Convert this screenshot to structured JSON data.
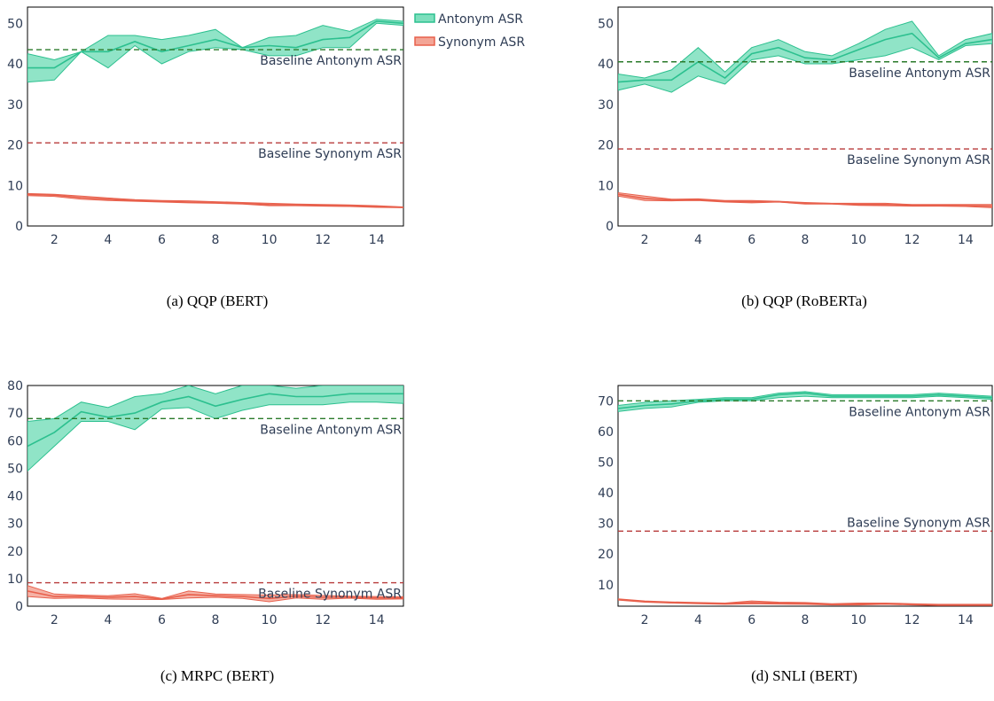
{
  "legend": {
    "antonym_label": "Antonym ASR",
    "synonym_label": "Synonym ASR"
  },
  "colors": {
    "antonym": "#2cc08f",
    "antonym_fill": "#7ddfbd",
    "synonym": "#e8604c",
    "synonym_fill": "#f3a596",
    "baseline_antonym": "#2a7a2a",
    "baseline_synonym": "#b83b3b",
    "axis_text": "#2f3d55"
  },
  "chart_data": [
    {
      "type": "line",
      "caption": "(a) QQP (BERT)",
      "x": [
        1,
        2,
        3,
        4,
        5,
        6,
        7,
        8,
        9,
        10,
        11,
        12,
        13,
        14,
        15
      ],
      "xlim": [
        1,
        15
      ],
      "ylim": [
        0,
        54
      ],
      "xticks": [
        2,
        4,
        6,
        8,
        10,
        12,
        14
      ],
      "yticks": [
        0,
        10,
        20,
        30,
        40,
        50
      ],
      "series": [
        {
          "name": "Antonym ASR",
          "values": [
            39,
            39,
            43,
            43,
            45.5,
            43,
            44.5,
            46,
            44,
            44.5,
            44,
            46,
            46.5,
            50.5,
            50
          ],
          "lower": [
            35.5,
            36,
            43,
            39,
            44.5,
            40,
            43,
            44,
            43.5,
            42,
            42,
            44,
            44,
            50,
            49.5
          ],
          "upper": [
            42.5,
            41,
            43,
            47,
            47,
            46,
            47,
            48.5,
            44,
            46.5,
            47,
            49.5,
            48,
            51,
            50.5
          ]
        },
        {
          "name": "Synonym ASR",
          "values": [
            7.8,
            7.6,
            7.0,
            6.6,
            6.3,
            6.1,
            5.9,
            5.8,
            5.6,
            5.3,
            5.2,
            5.1,
            5.0,
            4.8,
            4.6
          ],
          "lower": [
            7.5,
            7.3,
            6.6,
            6.3,
            6.1,
            5.9,
            5.7,
            5.6,
            5.4,
            5.0,
            5.0,
            4.9,
            4.8,
            4.6,
            4.5
          ],
          "upper": [
            8.0,
            7.8,
            7.4,
            6.9,
            6.5,
            6.3,
            6.2,
            6.0,
            5.8,
            5.6,
            5.4,
            5.3,
            5.2,
            5.0,
            4.7
          ]
        }
      ],
      "baselines": [
        {
          "label": "Baseline Antonym ASR",
          "value": 43.5
        },
        {
          "label": "Baseline Synonym ASR",
          "value": 20.5
        }
      ]
    },
    {
      "type": "line",
      "caption": "(b) QQP (RoBERTa)",
      "x": [
        1,
        2,
        3,
        4,
        5,
        6,
        7,
        8,
        9,
        10,
        11,
        12,
        13,
        14,
        15
      ],
      "xlim": [
        1,
        15
      ],
      "ylim": [
        0,
        54
      ],
      "xticks": [
        2,
        4,
        6,
        8,
        10,
        12,
        14
      ],
      "yticks": [
        0,
        10,
        20,
        30,
        40,
        50
      ],
      "series": [
        {
          "name": "Antonym ASR",
          "values": [
            35.5,
            36,
            36,
            40.5,
            36.5,
            42.5,
            44,
            41.5,
            41,
            43.5,
            46,
            47.5,
            41.5,
            45,
            46
          ],
          "lower": [
            33.5,
            35,
            33,
            37,
            35,
            41,
            42,
            40,
            40,
            41,
            42,
            44,
            41,
            44.5,
            45
          ],
          "upper": [
            37.5,
            36.5,
            38.5,
            44,
            38,
            44,
            46,
            43,
            42,
            45,
            48.5,
            50.5,
            42,
            46,
            47.5
          ]
        },
        {
          "name": "Synonym ASR",
          "values": [
            7.8,
            6.8,
            6.4,
            6.5,
            6.1,
            6.0,
            6.0,
            5.6,
            5.5,
            5.3,
            5.3,
            5.1,
            5.1,
            5.0,
            4.9
          ],
          "lower": [
            7.4,
            6.3,
            6.2,
            6.3,
            5.9,
            5.7,
            5.9,
            5.4,
            5.4,
            5.1,
            5.0,
            4.9,
            4.9,
            4.8,
            4.5
          ],
          "upper": [
            8.2,
            7.4,
            6.6,
            6.7,
            6.3,
            6.3,
            6.1,
            5.8,
            5.6,
            5.6,
            5.6,
            5.3,
            5.3,
            5.3,
            5.3
          ]
        }
      ],
      "baselines": [
        {
          "label": "Baseline Antonym ASR",
          "value": 40.5
        },
        {
          "label": "Baseline Synonym ASR",
          "value": 19
        }
      ]
    },
    {
      "type": "line",
      "caption": "(c) MRPC (BERT)",
      "x": [
        1,
        2,
        3,
        4,
        5,
        6,
        7,
        8,
        9,
        10,
        11,
        12,
        13,
        14,
        15
      ],
      "xlim": [
        1,
        15
      ],
      "ylim": [
        0,
        80
      ],
      "xticks": [
        2,
        4,
        6,
        8,
        10,
        12,
        14
      ],
      "yticks": [
        0,
        10,
        20,
        30,
        40,
        50,
        60,
        70,
        80
      ],
      "series": [
        {
          "name": "Antonym ASR",
          "values": [
            58,
            63,
            70.5,
            68.5,
            70,
            74,
            76,
            72.5,
            75,
            77,
            76,
            76,
            77,
            77,
            77
          ],
          "lower": [
            49,
            58,
            67,
            67,
            64,
            71.5,
            72,
            68,
            71,
            73,
            73,
            73,
            74,
            74,
            73.5
          ],
          "upper": [
            67,
            68,
            74,
            72,
            76,
            77,
            80,
            77,
            80,
            80,
            79,
            80,
            80,
            80,
            80
          ]
        },
        {
          "name": "Synonym ASR",
          "values": [
            5.5,
            3.5,
            3.5,
            3.2,
            3.5,
            2.6,
            4.2,
            3.8,
            3.5,
            2.8,
            3.6,
            3.2,
            3.2,
            3.0,
            3.0
          ],
          "lower": [
            3.5,
            2.8,
            3.0,
            2.6,
            2.5,
            2.4,
            3.0,
            3.2,
            2.8,
            1.6,
            3.0,
            2.5,
            2.9,
            2.5,
            2.6
          ],
          "upper": [
            7.5,
            4.4,
            4.0,
            3.8,
            4.5,
            2.8,
            5.5,
            4.4,
            4.2,
            4.0,
            4.2,
            3.9,
            3.6,
            3.5,
            3.4
          ]
        }
      ],
      "baselines": [
        {
          "label": "Baseline Antonym ASR",
          "value": 68
        },
        {
          "label": "Baseline Synonym ASR",
          "value": 8.5
        }
      ]
    },
    {
      "type": "line",
      "caption": "(d) SNLI (BERT)",
      "x": [
        1,
        2,
        3,
        4,
        5,
        6,
        7,
        8,
        9,
        10,
        11,
        12,
        13,
        14,
        15
      ],
      "xlim": [
        1,
        15
      ],
      "ylim": [
        3,
        75
      ],
      "xticks": [
        2,
        4,
        6,
        8,
        10,
        12,
        14
      ],
      "yticks": [
        10,
        20,
        30,
        40,
        50,
        60,
        70
      ],
      "series": [
        {
          "name": "Antonym ASR",
          "values": [
            67.5,
            68.5,
            69,
            70,
            70.5,
            70.5,
            72,
            72.5,
            71.5,
            71.5,
            71.5,
            71.5,
            72,
            71.5,
            71
          ],
          "lower": [
            66.5,
            67.5,
            68,
            69.5,
            70,
            70,
            71,
            71.5,
            71,
            71,
            71,
            71,
            71.5,
            71,
            70.5
          ],
          "upper": [
            68.5,
            69.5,
            70,
            70.5,
            71,
            71,
            72.5,
            73,
            72,
            72,
            72,
            72,
            72.5,
            72,
            71.5
          ]
        },
        {
          "name": "Synonym ASR",
          "values": [
            5.2,
            4.5,
            4.2,
            4.0,
            3.8,
            4.2,
            4.0,
            3.9,
            3.6,
            3.7,
            3.8,
            3.6,
            3.4,
            3.4,
            3.4
          ],
          "lower": [
            5.0,
            4.3,
            4.0,
            3.8,
            3.6,
            3.8,
            3.7,
            3.6,
            3.4,
            3.4,
            3.6,
            3.4,
            3.2,
            3.2,
            3.2
          ],
          "upper": [
            5.4,
            4.7,
            4.4,
            4.2,
            4.0,
            4.7,
            4.3,
            4.2,
            3.8,
            4.0,
            4.0,
            3.8,
            3.6,
            3.6,
            3.6
          ]
        }
      ],
      "baselines": [
        {
          "label": "Baseline Antonym ASR",
          "value": 70
        },
        {
          "label": "Baseline Synonym ASR",
          "value": 27.5
        }
      ]
    }
  ]
}
